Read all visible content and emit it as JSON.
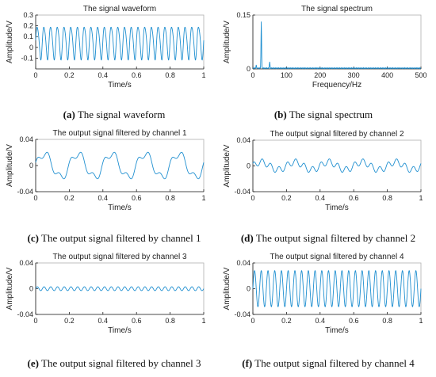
{
  "colors": {
    "line": "#1f8fd0",
    "axis": "#222222",
    "frame": "#b0b0b0"
  },
  "captions": [
    {
      "letter": "(a)",
      "text": " The signal waveform"
    },
    {
      "letter": "(b)",
      "text": " The signal spectrum"
    },
    {
      "letter": "(c)",
      "text": " The output signal filtered by channel 1"
    },
    {
      "letter": "(d)",
      "text": " The output signal filtered by channel 2"
    },
    {
      "letter": "(e)",
      "text": " The output signal filtered by channel 3"
    },
    {
      "letter": "(f)",
      "text": " The output signal filtered by channel 4"
    }
  ],
  "chart_data": [
    {
      "type": "line",
      "title": "The signal waveform",
      "xlabel": "Time/s",
      "ylabel": "Amplitude/V",
      "xlim": [
        0,
        1
      ],
      "ylim": [
        -0.2,
        0.3
      ],
      "xticks": [
        "0",
        "0.2",
        "0.4",
        "0.6",
        "0.8",
        "1"
      ],
      "yticks": [
        "-0.1",
        "0",
        "0.1",
        "0.2",
        "0.3"
      ],
      "components": [
        {
          "freq_hz": 25,
          "amp": 0.15
        },
        {
          "freq_hz": 50,
          "amp": 0.02
        }
      ],
      "offset": 0.05
    },
    {
      "type": "line",
      "title": "The signal spectrum",
      "xlabel": "Frequency/Hz",
      "ylabel": "Amplitude/V",
      "xlim": [
        0,
        500
      ],
      "ylim": [
        0,
        0.15
      ],
      "xticks": [
        "0",
        "100",
        "200",
        "300",
        "400",
        "500"
      ],
      "yticks": [
        "0",
        "0.15"
      ],
      "peaks": [
        {
          "x": 25,
          "y": 0.13
        },
        {
          "x": 50,
          "y": 0.018
        },
        {
          "x": 10,
          "y": 0.008
        }
      ],
      "baseline": 0.002
    },
    {
      "type": "line",
      "title": "The output signal filtered by channel 1",
      "xlabel": "Time/s",
      "ylabel": "Amplitude/V",
      "xlim": [
        0,
        1
      ],
      "ylim": [
        -0.04,
        0.04
      ],
      "xticks": [
        "0",
        "0.2",
        "0.4",
        "0.6",
        "0.8",
        "1"
      ],
      "yticks": [
        "-0.04",
        "0",
        "0.04"
      ],
      "components": [
        {
          "freq_hz": 5,
          "amp": 0.018
        },
        {
          "freq_hz": 15,
          "amp": 0.006
        }
      ],
      "offset": 0
    },
    {
      "type": "line",
      "title": "The output signal filtered by channel 2",
      "xlabel": "Time/s",
      "ylabel": "Amplitude/V",
      "xlim": [
        0,
        1
      ],
      "ylim": [
        -0.04,
        0.04
      ],
      "xticks": [
        "0",
        "0.2",
        "0.4",
        "0.6",
        "0.8",
        "1"
      ],
      "yticks": [
        "-0.04",
        "0",
        "0.04"
      ],
      "components": [
        {
          "freq_hz": 5,
          "amp": 0.006
        },
        {
          "freq_hz": 20,
          "amp": 0.005
        }
      ],
      "offset": 0
    },
    {
      "type": "line",
      "title": "The output signal filtered by channel 3",
      "xlabel": "Time/s",
      "ylabel": "Amplitude/V",
      "xlim": [
        0,
        1
      ],
      "ylim": [
        -0.04,
        0.04
      ],
      "xticks": [
        "0",
        "0.2",
        "0.4",
        "0.6",
        "0.8",
        "1"
      ],
      "yticks": [
        "-0.04",
        "0",
        "0.04"
      ],
      "components": [
        {
          "freq_hz": 25,
          "amp": 0.003
        }
      ],
      "offset": 0
    },
    {
      "type": "line",
      "title": "The output signal filtered by channel 4",
      "xlabel": "Time/s",
      "ylabel": "Amplitude/V",
      "xlim": [
        0,
        1
      ],
      "ylim": [
        -0.04,
        0.04
      ],
      "xticks": [
        "0",
        "0.2",
        "0.4",
        "0.6",
        "0.8",
        "1"
      ],
      "yticks": [
        "-0.04",
        "0",
        "0.04"
      ],
      "components": [
        {
          "freq_hz": 25,
          "amp": 0.028
        }
      ],
      "offset": 0
    }
  ]
}
